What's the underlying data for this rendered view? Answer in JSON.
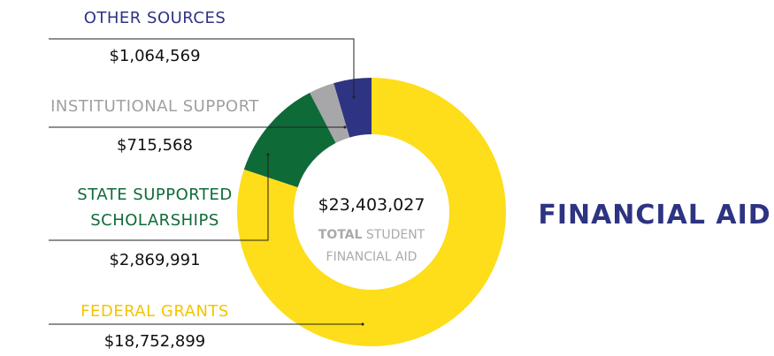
{
  "chart_data": {
    "type": "donut",
    "title": "FINANCIAL AID",
    "categories": [
      "FEDERAL GRANTS",
      "STATE SUPPORTED SCHOLARSHIPS",
      "INSTITUTIONAL SUPPORT",
      "OTHER SOURCES"
    ],
    "values": [
      18752899,
      2869991,
      715568,
      1064569
    ],
    "value_labels": [
      "$18,752,899",
      "$2,869,991",
      "$715,568",
      "$1,064,569"
    ],
    "colors": [
      "#fedd1a",
      "#0e6b38",
      "#a7a7a9",
      "#2e3382"
    ],
    "label_colors": [
      "#f4c400",
      "#0e6b38",
      "#a0a0a2",
      "#2e3382"
    ],
    "center_value": "$23,403,027",
    "center_bold": "TOTAL",
    "center_rest": "STUDENT",
    "center_line2": "FINANCIAL AID"
  }
}
